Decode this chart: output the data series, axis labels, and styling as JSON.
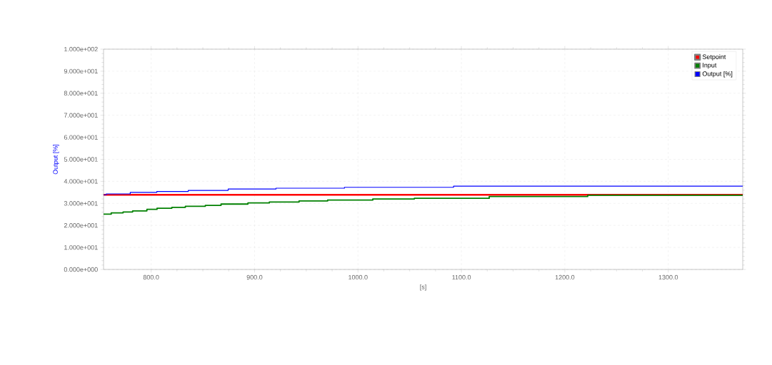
{
  "chart_data": {
    "type": "step",
    "xlabel": "[s]",
    "ylabel": "Output [%]",
    "xlim": [
      754,
      1372
    ],
    "ylim": [
      0,
      100
    ],
    "xticks": [
      {
        "value": 800,
        "label": "800.0"
      },
      {
        "value": 900,
        "label": "900.0"
      },
      {
        "value": 1000,
        "label": "1000.0"
      },
      {
        "value": 1100,
        "label": "1100.0"
      },
      {
        "value": 1200,
        "label": "1200.0"
      },
      {
        "value": 1300,
        "label": "1300.0"
      }
    ],
    "yticks": [
      {
        "value": 0,
        "label": "0.000e+000"
      },
      {
        "value": 10,
        "label": "1.000e+001"
      },
      {
        "value": 20,
        "label": "2.000e+001"
      },
      {
        "value": 30,
        "label": "3.000e+001"
      },
      {
        "value": 40,
        "label": "4.000e+001"
      },
      {
        "value": 50,
        "label": "5.000e+001"
      },
      {
        "value": 60,
        "label": "6.000e+001"
      },
      {
        "value": 70,
        "label": "7.000e+001"
      },
      {
        "value": 80,
        "label": "8.000e+001"
      },
      {
        "value": 90,
        "label": "9.000e+001"
      },
      {
        "value": 100,
        "label": "1.000e+002"
      }
    ],
    "grid": true,
    "legend": "top right",
    "series": [
      {
        "name": "Setpoint",
        "color": "#ff0000",
        "x": [
          754,
          1372
        ],
        "values": [
          33.9,
          33.9
        ]
      },
      {
        "name": "Input",
        "color": "#008000",
        "x": [
          754,
          761.4,
          772.9,
          782.1,
          795.9,
          805.7,
          820.0,
          833.1,
          852.4,
          867.6,
          893.6,
          914.3,
          943.0,
          970.6,
          1014.3,
          1054.5,
          1126.9,
          1222.1,
          1372
        ],
        "values": [
          25.1,
          25.7,
          26.1,
          26.6,
          27.3,
          27.8,
          28.2,
          28.7,
          29.1,
          29.7,
          30.2,
          30.6,
          31.1,
          31.5,
          32.0,
          32.3,
          33.1,
          33.7,
          33.7
        ]
      },
      {
        "name": "Output [%]",
        "color": "#0000ff",
        "x": [
          754,
          756.6,
          779.8,
          805.5,
          835.9,
          874.5,
          920.7,
          986.9,
          1092.4,
          1372
        ],
        "values": [
          33.9,
          34.3,
          35.0,
          35.4,
          35.9,
          36.5,
          36.9,
          37.3,
          37.8,
          37.8
        ]
      }
    ]
  }
}
